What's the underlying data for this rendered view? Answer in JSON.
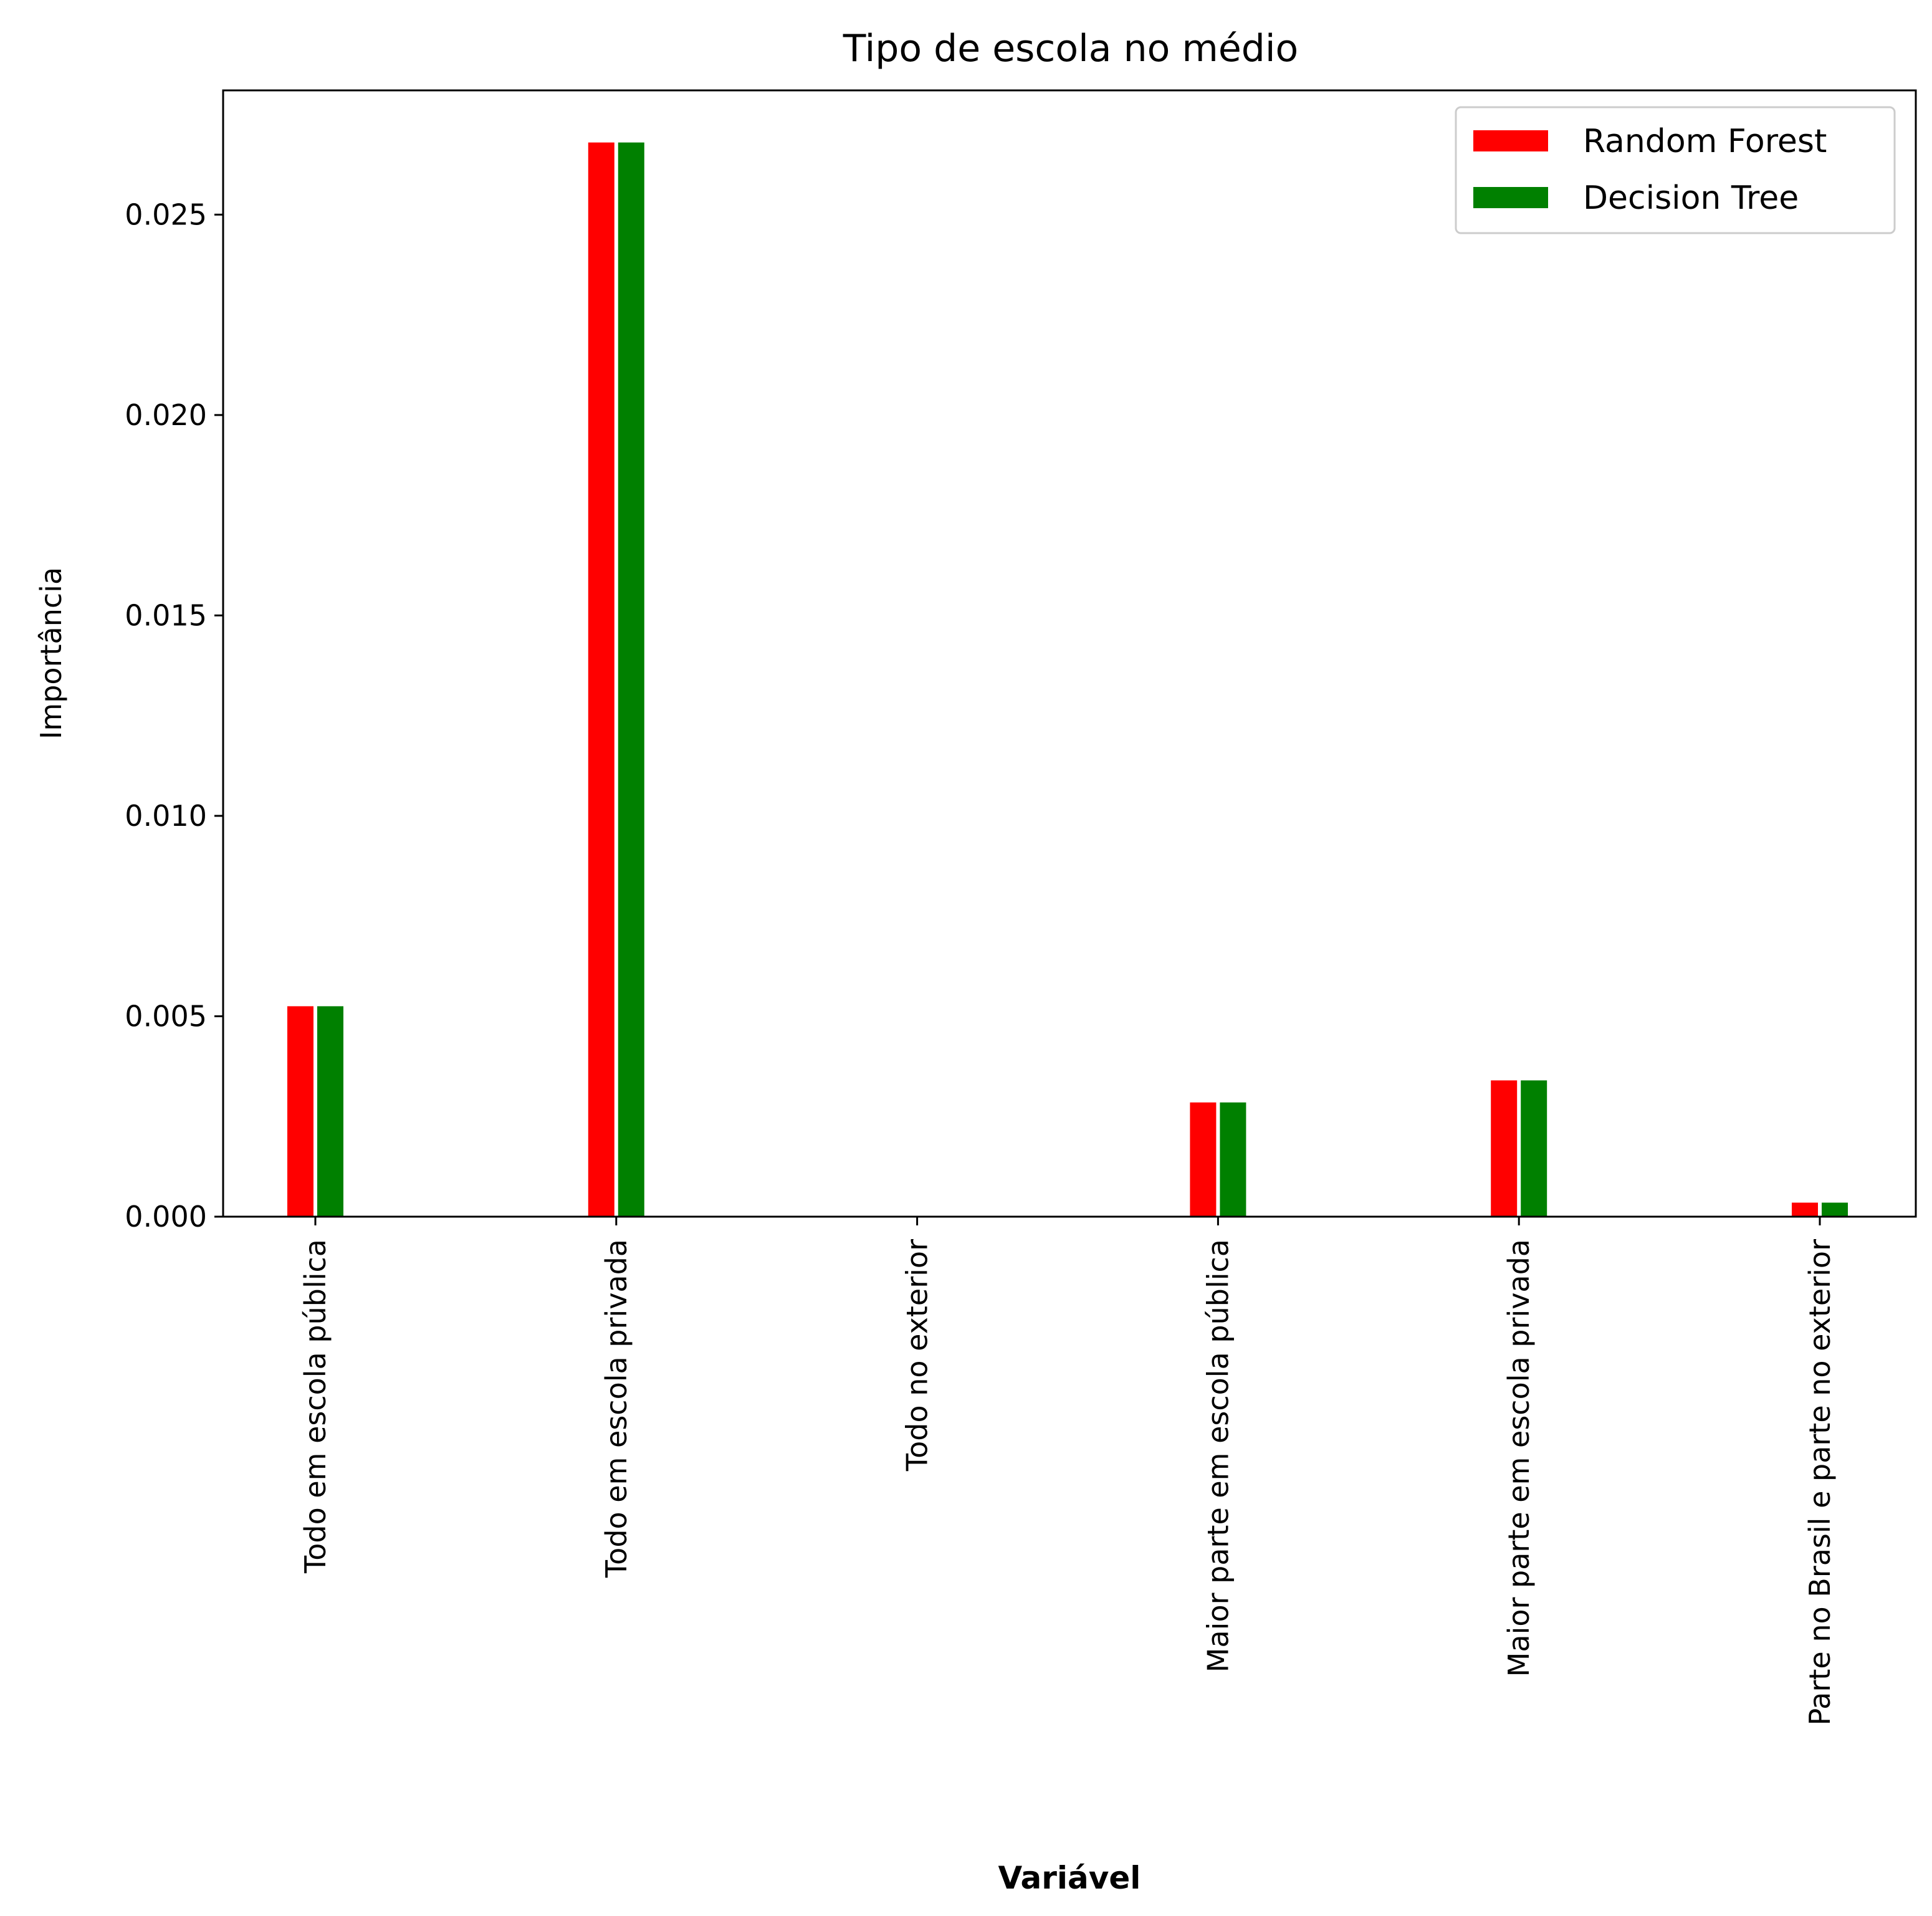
{
  "chart_data": {
    "type": "bar",
    "title": "Tipo de escola no médio",
    "xlabel": "Variável",
    "ylabel": "Importância",
    "ylim": [
      0,
      0.0281
    ],
    "yticks": [
      0.0,
      0.005,
      0.01,
      0.015,
      0.02,
      0.025
    ],
    "ytick_labels": [
      "0.000",
      "0.005",
      "0.010",
      "0.015",
      "0.020",
      "0.025"
    ],
    "categories": [
      "Todo em escola pública",
      "Todo em escola privada",
      "Todo no exterior",
      "Maior parte em escola pública",
      "Maior parte em escola privada",
      "Parte no Brasil e parte no exterior"
    ],
    "series": [
      {
        "name": "Random Forest",
        "color": "#ff0000",
        "values": [
          0.00525,
          0.0268,
          0.0,
          0.00285,
          0.0034,
          0.00035
        ]
      },
      {
        "name": "Decision Tree",
        "color": "#008000",
        "values": [
          0.00525,
          0.0268,
          0.0,
          0.00285,
          0.0034,
          0.00035
        ]
      }
    ],
    "legend": {
      "location": "top-right"
    },
    "grid": false
  }
}
